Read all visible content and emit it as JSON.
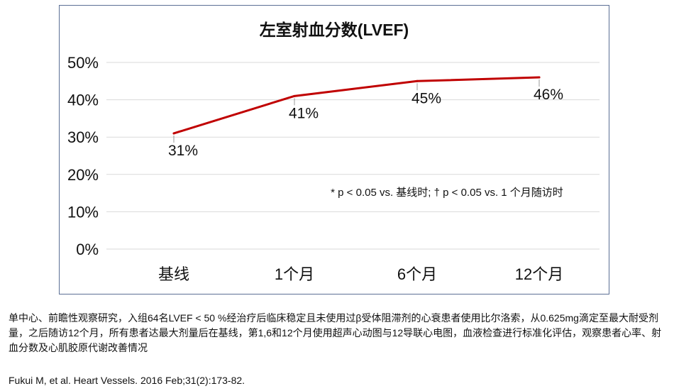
{
  "chart_data": {
    "type": "line",
    "title": "左室射血分数(LVEF)",
    "categories": [
      "基线",
      "1个月",
      "6个月",
      "12个月"
    ],
    "series": [
      {
        "values": [
          31,
          41,
          45,
          46
        ],
        "labels": [
          "31%",
          "41%",
          "45%",
          "46%"
        ]
      }
    ],
    "y_ticks": [
      "50%",
      "40%",
      "30%",
      "20%",
      "10%",
      "0%"
    ],
    "ylim": [
      0,
      50
    ],
    "grid": true,
    "annotation": "* p < 0.05 vs. 基线时; † p < 0.05 vs. 1 个月随访时",
    "line_color": "#c00000",
    "grid_color": "#d9d9d9",
    "border_color": "#5b6f95"
  },
  "footnotes": {
    "description": "单中心、前瞻性观察研究，入组64名LVEF < 50 %经治疗后临床稳定且未使用过β受体阻滞剂的心衰患者使用比尔洛索，从0.625mg滴定至最大耐受剂量，之后随访12个月，所有患者达最大剂量后在基线，第1,6和12个月使用超声心动图与12导联心电图，血液检查进行标准化评估，观察患者心率、射血分数及心肌胶原代谢改善情况",
    "reference": "Fukui M, et al. Heart Vessels. 2016 Feb;31(2):173-82."
  }
}
